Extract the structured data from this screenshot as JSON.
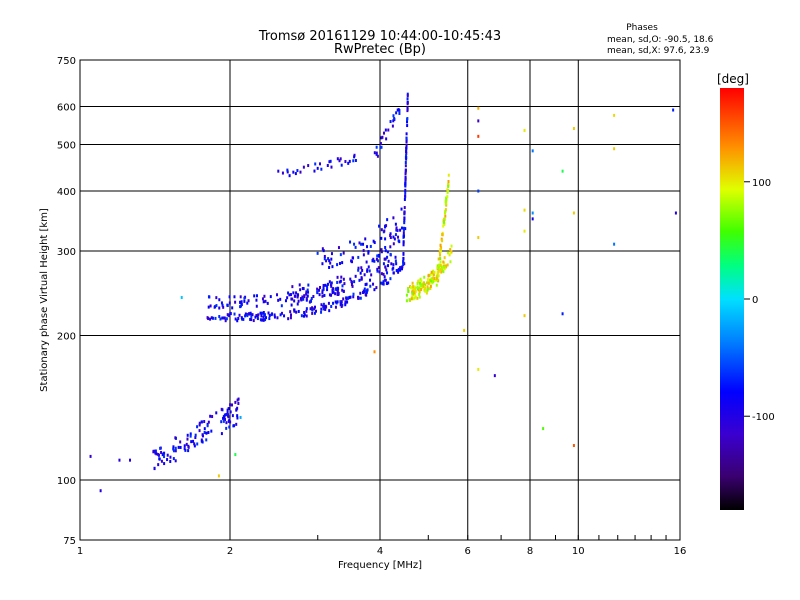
{
  "chart_data": {
    "type": "scatter",
    "title": "Tromsø 20161129 10:44:00-10:45:43",
    "subtitle": "RwPretec (Bp)",
    "xlabel": "Frequency [MHz]",
    "ylabel": "Stationary phase Virtual Height [km]",
    "x_scale": "log",
    "y_scale": "log",
    "xlim": [
      1,
      16
    ],
    "ylim": [
      75,
      750
    ],
    "x_ticks": [
      1,
      2,
      4,
      6,
      8,
      10,
      16
    ],
    "y_ticks": [
      75,
      100,
      200,
      300,
      400,
      500,
      600,
      750
    ],
    "grid": true,
    "legend": {
      "title": "Phases",
      "lines": [
        "mean, sd,O: -90.5, 18.6",
        "mean, sd,X:  97.6, 23.9"
      ],
      "position": "top-right"
    },
    "colorbar": {
      "label": "[deg]",
      "ticks": [
        100,
        0,
        -100
      ],
      "range": [
        -180,
        180
      ],
      "colormap": "rainbow"
    },
    "series": [
      {
        "name": "O",
        "color_value": -90,
        "segments": [
          {
            "x0": 1.8,
            "x1": 4.5,
            "y0": 218,
            "y1": 280,
            "n": 180,
            "curv": 3.2,
            "jit": 0.02
          },
          {
            "x0": 1.8,
            "x1": 4.4,
            "y0": 235,
            "y1": 290,
            "n": 120,
            "curv": 3.2,
            "jit": 0.03
          },
          {
            "x0": 2.6,
            "x1": 4.5,
            "y0": 245,
            "y1": 330,
            "n": 100,
            "curv": 2.5,
            "jit": 0.04
          },
          {
            "x0": 4.45,
            "x1": 4.55,
            "y0": 280,
            "y1": 640,
            "n": 80,
            "curv": 1.0,
            "jit": 0.03
          },
          {
            "x0": 3.0,
            "x1": 4.5,
            "y0": 290,
            "y1": 360,
            "n": 60,
            "curv": 2.0,
            "jit": 0.05
          },
          {
            "x0": 2.5,
            "x1": 3.6,
            "y0": 430,
            "y1": 470,
            "n": 30,
            "curv": 1.0,
            "jit": 0.02
          },
          {
            "x0": 3.9,
            "x1": 4.4,
            "y0": 470,
            "y1": 600,
            "n": 25,
            "curv": 1.0,
            "jit": 0.03
          },
          {
            "x0": 1.4,
            "x1": 2.1,
            "y0": 108,
            "y1": 140,
            "n": 120,
            "curv": 1.0,
            "jit": 0.06
          }
        ]
      },
      {
        "name": "X",
        "color_value": 95,
        "segments": [
          {
            "x0": 4.5,
            "x1": 5.6,
            "y0": 245,
            "y1": 300,
            "n": 90,
            "curv": 2.0,
            "jit": 0.04
          },
          {
            "x0": 5.2,
            "x1": 5.5,
            "y0": 260,
            "y1": 420,
            "n": 60,
            "curv": 1.0,
            "jit": 0.03
          },
          {
            "x0": 4.6,
            "x1": 5.4,
            "y0": 250,
            "y1": 280,
            "n": 50,
            "curv": 1.5,
            "jit": 0.03
          }
        ]
      }
    ],
    "scattered_points": [
      {
        "x": 1.05,
        "y": 112,
        "c": -110
      },
      {
        "x": 1.1,
        "y": 95,
        "c": -100
      },
      {
        "x": 1.2,
        "y": 110,
        "c": -105
      },
      {
        "x": 1.26,
        "y": 110,
        "c": -100
      },
      {
        "x": 1.6,
        "y": 240,
        "c": -10
      },
      {
        "x": 2.5,
        "y": 440,
        "c": -100
      },
      {
        "x": 3.9,
        "y": 185,
        "c": 130
      },
      {
        "x": 5.9,
        "y": 205,
        "c": 110
      },
      {
        "x": 6.3,
        "y": 595,
        "c": 120
      },
      {
        "x": 6.3,
        "y": 560,
        "c": -120
      },
      {
        "x": 6.3,
        "y": 520,
        "c": 160
      },
      {
        "x": 6.3,
        "y": 400,
        "c": -60
      },
      {
        "x": 6.3,
        "y": 320,
        "c": 110
      },
      {
        "x": 6.3,
        "y": 170,
        "c": 100
      },
      {
        "x": 6.8,
        "y": 165,
        "c": -110
      },
      {
        "x": 7.8,
        "y": 535,
        "c": 100
      },
      {
        "x": 7.8,
        "y": 365,
        "c": 105
      },
      {
        "x": 7.8,
        "y": 330,
        "c": 100
      },
      {
        "x": 7.8,
        "y": 220,
        "c": 110
      },
      {
        "x": 8.1,
        "y": 485,
        "c": -40
      },
      {
        "x": 8.1,
        "y": 360,
        "c": -30
      },
      {
        "x": 8.1,
        "y": 350,
        "c": -90
      },
      {
        "x": 8.5,
        "y": 128,
        "c": 60
      },
      {
        "x": 9.3,
        "y": 440,
        "c": 40
      },
      {
        "x": 9.3,
        "y": 222,
        "c": -70
      },
      {
        "x": 9.8,
        "y": 540,
        "c": 110
      },
      {
        "x": 9.8,
        "y": 360,
        "c": 110
      },
      {
        "x": 9.8,
        "y": 118,
        "c": 150
      },
      {
        "x": 11.8,
        "y": 575,
        "c": 105
      },
      {
        "x": 11.8,
        "y": 490,
        "c": 110
      },
      {
        "x": 11.8,
        "y": 310,
        "c": -40
      },
      {
        "x": 15.5,
        "y": 590,
        "c": -70
      },
      {
        "x": 15.7,
        "y": 360,
        "c": -100
      },
      {
        "x": 2.05,
        "y": 113,
        "c": 40
      },
      {
        "x": 1.9,
        "y": 102,
        "c": 110
      },
      {
        "x": 2.1,
        "y": 135,
        "c": -20
      }
    ]
  }
}
